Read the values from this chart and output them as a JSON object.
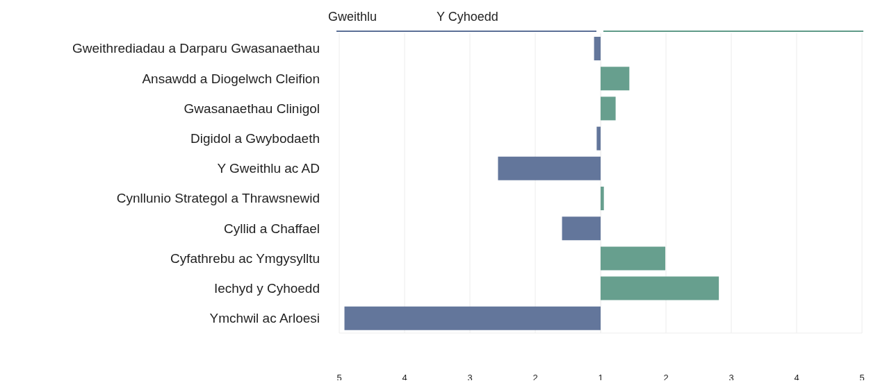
{
  "chart_data": [
    {
      "type": "bar",
      "orientation": "horizontal",
      "categories": [
        "Gweithrediadau a Darparu Gwasanaethau",
        "Ansawdd a Diogelwch Cleifion",
        "Gwasanaethau Clinigol",
        "Digidol a Gwybodaeth",
        "Y Gweithlu ac AD",
        "Cynllunio Strategol a Thrawsnewid",
        "Cyllid a Chaffael",
        "Cyfathrebu ac Ymgysylltu",
        "Iechyd y Cyhoedd",
        "Ymchwil ac Arloesi"
      ],
      "series": [
        {
          "name": "Gweithlu",
          "color": "#5b6f96",
          "values": [
            1.1,
            null,
            null,
            1.06,
            2.57,
            null,
            1.59,
            null,
            null,
            4.92
          ]
        }
      ],
      "xlim": [
        5,
        1
      ],
      "xticks": [
        5,
        4,
        3,
        2,
        1
      ],
      "grid": "x",
      "legend": "top"
    },
    {
      "type": "bar",
      "orientation": "horizontal",
      "categories": [
        null,
        null,
        null,
        null,
        null,
        null,
        null,
        null,
        null,
        null
      ],
      "series": [
        {
          "name": "Y Cyhoedd",
          "color": "#5f9a88",
          "values": [
            null,
            1.44,
            1.23,
            null,
            null,
            1.05,
            null,
            1.99,
            2.81,
            null
          ]
        }
      ],
      "xlim": [
        1,
        5
      ],
      "xticks": [
        2,
        3,
        4,
        5
      ],
      "grid": "x",
      "legend": "top",
      "tick_labels": "x"
    }
  ]
}
